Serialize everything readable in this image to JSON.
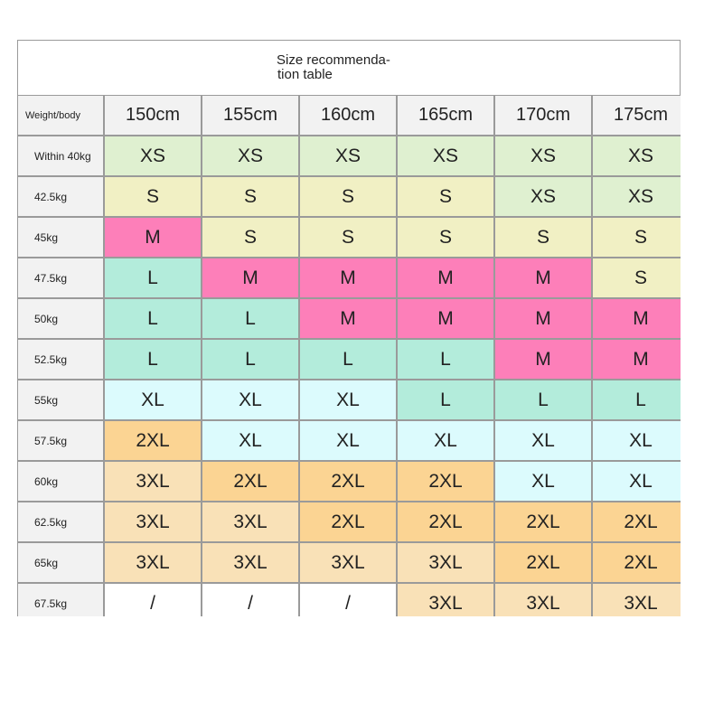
{
  "title_line1": "Size recommenda-",
  "title_line2": "tion table",
  "corner_label": "Weight/body",
  "heights": [
    "150cm",
    "155cm",
    "160cm",
    "165cm",
    "170cm",
    "175cm"
  ],
  "rows": [
    {
      "weight": "Within 40kg",
      "sizes": [
        "XS",
        "XS",
        "XS",
        "XS",
        "XS",
        "XS"
      ]
    },
    {
      "weight": "42.5kg",
      "sizes": [
        "S",
        "S",
        "S",
        "S",
        "XS",
        "XS"
      ]
    },
    {
      "weight": "45kg",
      "sizes": [
        "M",
        "S",
        "S",
        "S",
        "S",
        "S"
      ]
    },
    {
      "weight": "47.5kg",
      "sizes": [
        "L",
        "M",
        "M",
        "M",
        "M",
        "S"
      ]
    },
    {
      "weight": "50kg",
      "sizes": [
        "L",
        "L",
        "M",
        "M",
        "M",
        "M"
      ]
    },
    {
      "weight": "52.5kg",
      "sizes": [
        "L",
        "L",
        "L",
        "L",
        "M",
        "M"
      ]
    },
    {
      "weight": "55kg",
      "sizes": [
        "XL",
        "XL",
        "XL",
        "L",
        "L",
        "L"
      ]
    },
    {
      "weight": "57.5kg",
      "sizes": [
        "2XL",
        "XL",
        "XL",
        "XL",
        "XL",
        "XL"
      ]
    },
    {
      "weight": "60kg",
      "sizes": [
        "3XL",
        "2XL",
        "2XL",
        "2XL",
        "XL",
        "XL"
      ]
    },
    {
      "weight": "62.5kg",
      "sizes": [
        "3XL",
        "3XL",
        "2XL",
        "2XL",
        "2XL",
        "2XL"
      ]
    },
    {
      "weight": "65kg",
      "sizes": [
        "3XL",
        "3XL",
        "3XL",
        "3XL",
        "2XL",
        "2XL"
      ]
    },
    {
      "weight": "67.5kg",
      "sizes": [
        "/",
        "/",
        "/",
        "3XL",
        "3XL",
        "3XL"
      ]
    }
  ],
  "size_colors": {
    "XS": "#dff0d0",
    "S": "#f1f0c4",
    "M": "#fd7fb9",
    "L": "#b3ecdb",
    "XL": "#dcfbfd",
    "2XL": "#fbd493",
    "3XL": "#f9e1b7",
    "/": "#ffffff"
  }
}
